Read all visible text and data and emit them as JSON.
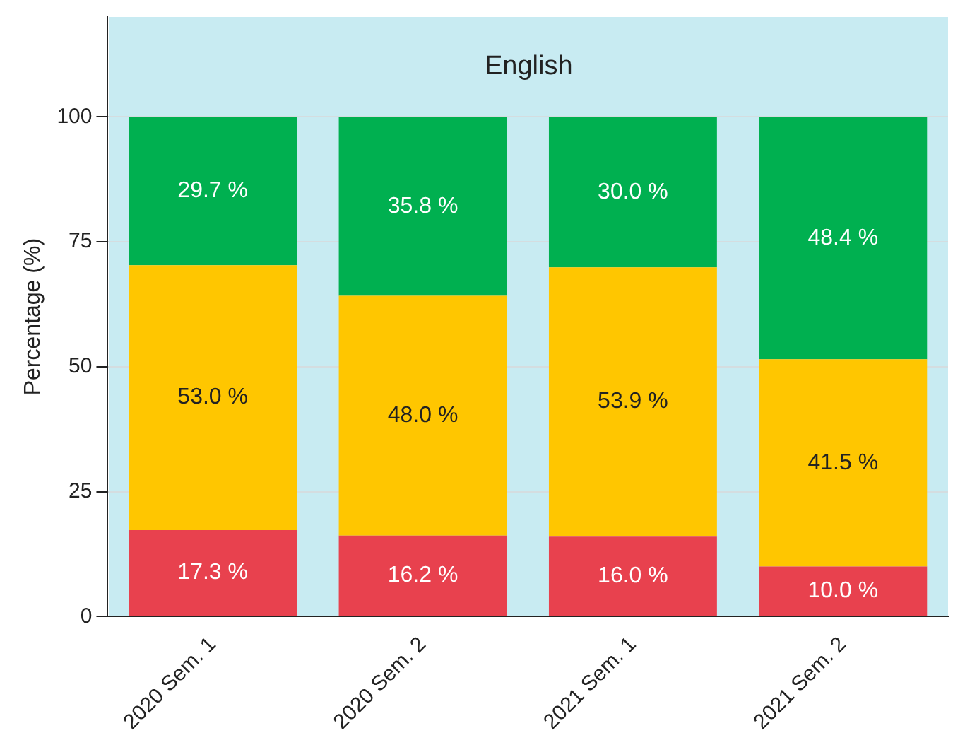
{
  "chart_data": {
    "type": "bar",
    "title": "English",
    "ylabel": "Percentage (%)",
    "stacked": true,
    "grid": "y",
    "ylim": [
      0,
      120
    ],
    "yticks": [
      0,
      25,
      50,
      75,
      100
    ],
    "categories": [
      "2020 Sem. 1",
      "2020 Sem. 2",
      "2021 Sem. 1",
      "2021 Sem. 2"
    ],
    "series": [
      {
        "color": "#e8414e",
        "values": [
          17.3,
          16.2,
          16.0,
          10.0
        ],
        "value_labels": [
          "17.3 %",
          "16.2 %",
          "16.0 %",
          "10.0 %"
        ]
      },
      {
        "color": "#ffc600",
        "values": [
          53.0,
          48.0,
          53.9,
          41.5
        ],
        "value_labels": [
          "53.0 %",
          "48.0 %",
          "53.9 %",
          "41.5 %"
        ]
      },
      {
        "color": "#00b050",
        "values": [
          29.7,
          35.8,
          30.0,
          48.4
        ],
        "value_labels": [
          "29.7 %",
          "35.8 %",
          "30.0 %",
          "48.4 %"
        ]
      }
    ]
  }
}
